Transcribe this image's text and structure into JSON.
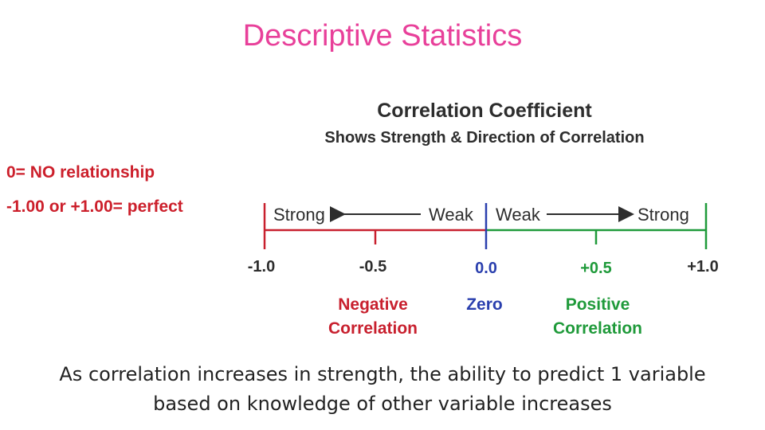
{
  "title": "Descriptive Statistics",
  "notes": {
    "zero": "0= NO relationship",
    "perfect": "-1.00 or +1.00= perfect"
  },
  "diagram": {
    "heading": "Correlation Coefficient",
    "subheading": "Shows Strength & Direction of Correlation",
    "left_strong": "Strong",
    "left_weak": "Weak",
    "right_weak": "Weak",
    "right_strong": "Strong",
    "ticks": [
      "-1.0",
      "-0.5",
      "0.0",
      "+0.5",
      "+1.0"
    ],
    "negative_line1": "Negative",
    "negative_line2": "Correlation",
    "zero_label": "Zero",
    "positive_line1": "Positive",
    "positive_line2": "Correlation",
    "colors": {
      "negative": "#c8202e",
      "zero": "#2a3fae",
      "positive": "#1f9a3a",
      "text": "#2d2d2d"
    }
  },
  "caption": {
    "line1": "As correlation increases in strength, the ability to predict 1 variable",
    "line2": "based on knowledge of other variable increases"
  }
}
